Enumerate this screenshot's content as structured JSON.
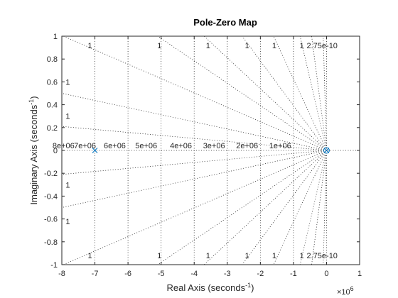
{
  "chart_data": {
    "type": "scatter",
    "title": "Pole-Zero Map",
    "xlabel": "Real Axis (seconds",
    "xlabel_sup": "-1",
    "xlabel_end": ")",
    "ylabel": "Imaginary Axis (seconds",
    "ylabel_sup": "-1",
    "ylabel_end": ")",
    "x_exponent": "×10",
    "x_exponent_power": "6",
    "xlim": [
      -8,
      1
    ],
    "ylim": [
      -1,
      1
    ],
    "x_tick_values": [
      -8,
      -7,
      -6,
      -5,
      -4,
      -3,
      -2,
      -1,
      0,
      1
    ],
    "x_tick_labels": [
      "-8",
      "-7",
      "-6",
      "-5",
      "-4",
      "-3",
      "-2",
      "-1",
      "0",
      "1"
    ],
    "y_tick_values": [
      -1,
      -0.8,
      -0.6,
      -0.4,
      -0.2,
      0,
      0.2,
      0.4,
      0.6,
      0.8,
      1
    ],
    "y_tick_labels": [
      "-1",
      "-0.8",
      "-0.6",
      "-0.4",
      "-0.2",
      "0",
      "0.2",
      "0.4",
      "0.6",
      "0.8",
      "1"
    ],
    "poles": [
      {
        "x": -7.0,
        "y": 0
      },
      {
        "x": 0,
        "y": 0
      }
    ],
    "zeros": [
      {
        "x": 0,
        "y": 0
      }
    ],
    "colors": {
      "marker": "#0072BD",
      "grid": "#262626",
      "axis": "#262626"
    },
    "frequency_grid_labels": [
      {
        "text": "8e+06",
        "x": -7.95
      },
      {
        "text": "7e+06",
        "x": -7.3
      },
      {
        "text": "6e+06",
        "x": -6.4
      },
      {
        "text": "5e+06",
        "x": -5.45
      },
      {
        "text": "4e+06",
        "x": -4.4
      },
      {
        "text": "3e+06",
        "x": -3.4
      },
      {
        "text": "2e+06",
        "x": -2.4
      },
      {
        "text": "1e+06",
        "x": -1.4
      }
    ],
    "damping_grid_labels": [
      {
        "text": "1",
        "x": -7.15,
        "y": 0.92
      },
      {
        "text": "1",
        "x": -5.05,
        "y": 0.92
      },
      {
        "text": "1",
        "x": -3.58,
        "y": 0.92
      },
      {
        "text": "1",
        "x": -2.4,
        "y": 0.92
      },
      {
        "text": "1",
        "x": -1.58,
        "y": 0.92
      },
      {
        "text": "1",
        "x": -0.75,
        "y": 0.92
      },
      {
        "text": "2.75e-10",
        "x": -0.6,
        "y": 0.92
      },
      {
        "text": "1",
        "x": -7.82,
        "y": 0.6
      },
      {
        "text": "1",
        "x": -7.82,
        "y": 0.3
      },
      {
        "text": "1",
        "x": -7.82,
        "y": -0.3
      },
      {
        "text": "1",
        "x": -7.82,
        "y": -0.62
      },
      {
        "text": "1",
        "x": -7.15,
        "y": -0.92
      },
      {
        "text": "1",
        "x": -5.05,
        "y": -0.92
      },
      {
        "text": "1",
        "x": -3.58,
        "y": -0.92
      },
      {
        "text": "1",
        "x": -2.4,
        "y": -0.92
      },
      {
        "text": "1",
        "x": -1.58,
        "y": -0.92
      },
      {
        "text": "1",
        "x": -0.75,
        "y": -0.92
      },
      {
        "text": "2.75e-10",
        "x": -0.6,
        "y": -0.92
      }
    ],
    "damping_ray_endpoints": [
      {
        "x": -8,
        "y": 0.5
      },
      {
        "x": -8,
        "y": 0.21
      },
      {
        "x": -7.95,
        "y": 1
      },
      {
        "x": -5.1,
        "y": 1
      },
      {
        "x": -3.7,
        "y": 1
      },
      {
        "x": -2.55,
        "y": 1
      },
      {
        "x": -1.6,
        "y": 1
      },
      {
        "x": -0.8,
        "y": 1
      },
      {
        "x": -0.45,
        "y": 1
      },
      {
        "x": -0.1,
        "y": 1
      },
      {
        "x": -8,
        "y": -0.21
      },
      {
        "x": -8,
        "y": -0.5
      },
      {
        "x": -7.95,
        "y": -1
      },
      {
        "x": -5.1,
        "y": -1
      },
      {
        "x": -3.7,
        "y": -1
      },
      {
        "x": -2.55,
        "y": -1
      },
      {
        "x": -1.6,
        "y": -1
      },
      {
        "x": -0.8,
        "y": -1
      },
      {
        "x": -0.45,
        "y": -1
      },
      {
        "x": -0.1,
        "y": -1
      }
    ],
    "frequency_grid_lines": [
      -7,
      -6,
      -5,
      -4,
      -3,
      -2,
      -1
    ],
    "zero_axis_lines": [
      0
    ],
    "grid": true,
    "legend": "none"
  }
}
